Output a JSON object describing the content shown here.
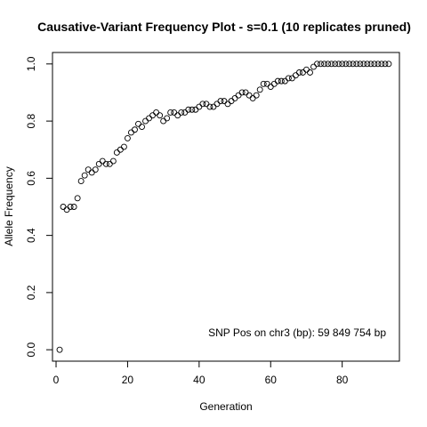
{
  "chart_data": {
    "type": "scatter",
    "title": "Causative-Variant Frequency Plot - s=0.1 (10 replicates pruned)",
    "xlabel": "Generation",
    "ylabel": "Allele Frequency",
    "xlim": [
      -1,
      96
    ],
    "ylim": [
      -0.04,
      1.04
    ],
    "xticks": [
      0,
      20,
      40,
      60,
      80
    ],
    "yticks": [
      0.0,
      0.2,
      0.4,
      0.6,
      0.8,
      1.0
    ],
    "xtick_labels": [
      "0",
      "20",
      "40",
      "60",
      "80"
    ],
    "ytick_labels": [
      "0.0",
      "0.2",
      "0.4",
      "0.6",
      "0.8",
      "1.0"
    ],
    "grid": false,
    "annotation": "SNP Pos on chr3 (bp): 59 849 754 bp",
    "series": [
      {
        "marker": "open-circle",
        "x": [
          1,
          2,
          3,
          4,
          5,
          6,
          7,
          8,
          9,
          10,
          11,
          12,
          13,
          14,
          15,
          16,
          17,
          18,
          19,
          20,
          21,
          22,
          23,
          24,
          25,
          26,
          27,
          28,
          29,
          30,
          31,
          32,
          33,
          34,
          35,
          36,
          37,
          38,
          39,
          40,
          41,
          42,
          43,
          44,
          45,
          46,
          47,
          48,
          49,
          50,
          51,
          52,
          53,
          54,
          55,
          56,
          57,
          58,
          59,
          60,
          61,
          62,
          63,
          64,
          65,
          66,
          67,
          68,
          69,
          70,
          71,
          72,
          73,
          74,
          75,
          76,
          77,
          78,
          79,
          80,
          81,
          82,
          83,
          84,
          85,
          86,
          87,
          88,
          89,
          90,
          91,
          92,
          93
        ],
        "y": [
          0.0,
          0.5,
          0.49,
          0.5,
          0.5,
          0.53,
          0.59,
          0.61,
          0.63,
          0.62,
          0.63,
          0.65,
          0.66,
          0.65,
          0.65,
          0.66,
          0.69,
          0.7,
          0.71,
          0.74,
          0.76,
          0.77,
          0.79,
          0.78,
          0.8,
          0.81,
          0.82,
          0.83,
          0.82,
          0.8,
          0.81,
          0.83,
          0.83,
          0.82,
          0.83,
          0.83,
          0.84,
          0.84,
          0.84,
          0.85,
          0.86,
          0.86,
          0.85,
          0.85,
          0.86,
          0.87,
          0.87,
          0.86,
          0.87,
          0.88,
          0.89,
          0.9,
          0.9,
          0.89,
          0.88,
          0.89,
          0.91,
          0.93,
          0.93,
          0.92,
          0.93,
          0.94,
          0.94,
          0.94,
          0.95,
          0.95,
          0.96,
          0.97,
          0.97,
          0.98,
          0.97,
          0.99,
          1.0,
          1.0,
          1.0,
          1.0,
          1.0,
          1.0,
          1.0,
          1.0,
          1.0,
          1.0,
          1.0,
          1.0,
          1.0,
          1.0,
          1.0,
          1.0,
          1.0,
          1.0,
          1.0,
          1.0,
          1.0
        ]
      }
    ]
  }
}
